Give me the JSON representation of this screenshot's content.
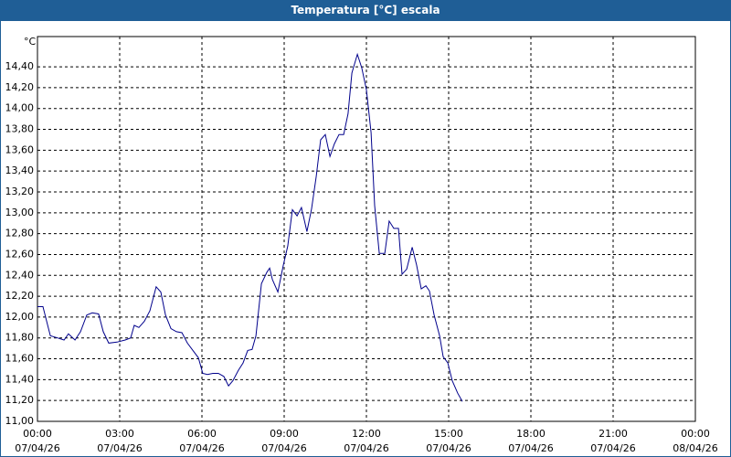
{
  "chart_data": {
    "type": "line",
    "title": "Temperatura [°C] escala",
    "y_label": "°C",
    "color": "#00008b",
    "grid": true,
    "x": [
      0,
      0.2,
      0.47,
      0.73,
      0.97,
      1.13,
      1.37,
      1.57,
      1.8,
      2.0,
      2.23,
      2.4,
      2.6,
      2.9,
      3.2,
      3.4,
      3.53,
      3.7,
      3.9,
      4.1,
      4.33,
      4.5,
      4.67,
      4.87,
      5.07,
      5.27,
      5.47,
      5.67,
      5.87,
      6.03,
      6.2,
      6.4,
      6.6,
      6.8,
      6.97,
      7.13,
      7.33,
      7.5,
      7.67,
      7.83,
      7.97,
      8.17,
      8.37,
      8.47,
      8.57,
      8.77,
      8.97,
      9.13,
      9.3,
      9.47,
      9.63,
      9.83,
      10.0,
      10.17,
      10.33,
      10.5,
      10.67,
      10.83,
      11.0,
      11.17,
      11.33,
      11.47,
      11.67,
      11.83,
      12.0,
      12.17,
      12.3,
      12.47,
      12.67,
      12.83,
      13.0,
      13.17,
      13.3,
      13.47,
      13.67,
      13.83,
      14.0,
      14.17,
      14.3,
      14.47,
      14.67,
      14.8,
      14.97,
      15.13,
      15.33,
      15.5
    ],
    "values": [
      12.1,
      12.1,
      11.82,
      11.8,
      11.78,
      11.84,
      11.78,
      11.86,
      12.02,
      12.04,
      12.03,
      11.86,
      11.75,
      11.76,
      11.78,
      11.8,
      11.92,
      11.9,
      11.96,
      12.06,
      12.29,
      12.24,
      12.02,
      11.89,
      11.86,
      11.85,
      11.75,
      11.68,
      11.61,
      11.46,
      11.45,
      11.46,
      11.46,
      11.43,
      11.34,
      11.39,
      11.49,
      11.56,
      11.68,
      11.69,
      11.82,
      12.32,
      12.43,
      12.47,
      12.36,
      12.24,
      12.5,
      12.68,
      13.03,
      12.97,
      13.05,
      12.82,
      13.04,
      13.35,
      13.7,
      13.75,
      13.54,
      13.66,
      13.75,
      13.75,
      13.95,
      14.34,
      14.52,
      14.39,
      14.18,
      13.77,
      13.07,
      12.61,
      12.61,
      12.92,
      12.85,
      12.85,
      12.41,
      12.46,
      12.67,
      12.5,
      12.27,
      12.3,
      12.25,
      12.02,
      11.82,
      11.62,
      11.56,
      11.39,
      11.27,
      11.19
    ],
    "xlim": [
      0,
      24
    ],
    "xticks": [
      {
        "value": 0,
        "label": "00:00",
        "date": "07/04/26"
      },
      {
        "value": 3,
        "label": "03:00",
        "date": "07/04/26"
      },
      {
        "value": 6,
        "label": "06:00",
        "date": "07/04/26"
      },
      {
        "value": 9,
        "label": "09:00",
        "date": "07/04/26"
      },
      {
        "value": 12,
        "label": "12:00",
        "date": "07/04/26"
      },
      {
        "value": 15,
        "label": "15:00",
        "date": "07/04/26"
      },
      {
        "value": 18,
        "label": "18:00",
        "date": "07/04/26"
      },
      {
        "value": 21,
        "label": "21:00",
        "date": "07/04/26"
      },
      {
        "value": 24,
        "label": "00:00",
        "date": "08/04/26"
      }
    ],
    "ylim": [
      11,
      14.69
    ],
    "yticks": [
      {
        "value": 11,
        "label": "11,00"
      },
      {
        "value": 11.2,
        "label": "11,20"
      },
      {
        "value": 11.4,
        "label": "11,40"
      },
      {
        "value": 11.6,
        "label": "11,60"
      },
      {
        "value": 11.8,
        "label": "11,80"
      },
      {
        "value": 12,
        "label": "12,00"
      },
      {
        "value": 12.2,
        "label": "12,20"
      },
      {
        "value": 12.4,
        "label": "12,40"
      },
      {
        "value": 12.6,
        "label": "12,60"
      },
      {
        "value": 12.8,
        "label": "12,80"
      },
      {
        "value": 13,
        "label": "13,00"
      },
      {
        "value": 13.2,
        "label": "13,20"
      },
      {
        "value": 13.4,
        "label": "13,40"
      },
      {
        "value": 13.6,
        "label": "13,60"
      },
      {
        "value": 13.8,
        "label": "13,80"
      },
      {
        "value": 14,
        "label": "14,00"
      },
      {
        "value": 14.2,
        "label": "14,20"
      },
      {
        "value": 14.4,
        "label": "14,40"
      }
    ]
  }
}
